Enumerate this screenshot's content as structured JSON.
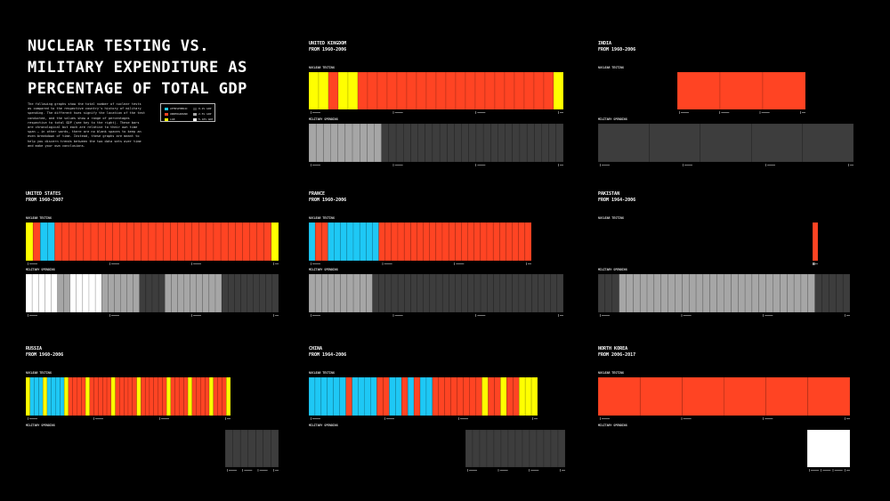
{
  "title_lines": [
    "NUCLEAR TESTING VS.",
    "MILITARY EXPENDITURE AS",
    "PERCENTAGE OF TOTAL GDP"
  ],
  "intro": "The following graphs show the total number of nuclear tests as compared to the respective country's history of military spending. The different hues signify the location of the test conducted, and the values show a range of percentages respective to total GDP (see key to the right). These bars are chronological but each are relative to their own time span — in other words, there are no blank spaces to keep an even breakdown of time. Instead, these graphs are meant to help you discern trends between the two data sets over time and make your own conclusions.",
  "legend": [
    {
      "label": "ATMOSPHERIC",
      "color": "#1ec8f5"
    },
    {
      "label": "UNDERGROUND",
      "color": "#ff4423"
    },
    {
      "label": "LAB",
      "color": "#ffff00"
    },
    {
      "label": "0-2% GDP",
      "color": "#3d3d3d"
    },
    {
      "label": "2-5% GDP",
      "color": "#a6a6a6"
    },
    {
      "label": "5-10% GDP",
      "color": "#ffffff"
    }
  ],
  "labels": {
    "nuclear": "NUCLEAR TESTING",
    "military": "MILITARY SPENDING"
  },
  "colors": {
    "ATM": "#1ec8f5",
    "UND": "#ff4423",
    "LAB": "#ffff00",
    "LOW": "#3d3d3d",
    "MID": "#a6a6a6",
    "HIGH": "#ffffff"
  },
  "chart_data": [
    {
      "type": "bar",
      "country": "UNITED KINGDOM",
      "period": "FROM 1960-2006",
      "nuclear": [
        {
          "type": "LAB",
          "count": 2
        },
        {
          "type": "UND",
          "count": 1
        },
        {
          "type": "LAB",
          "count": 2
        },
        {
          "type": "UND",
          "count": 20
        },
        {
          "type": "LAB",
          "count": 1
        }
      ],
      "military": [
        {
          "level": "MID",
          "count": 10
        },
        {
          "level": "LOW",
          "count": 25
        }
      ]
    },
    {
      "type": "bar",
      "country": "INDIA",
      "period": "FROM 1960-2006",
      "nuclear": [
        {
          "type": "UND",
          "count": 3
        }
      ],
      "military": [
        {
          "level": "LOW",
          "count": 5
        }
      ]
    },
    {
      "type": "bar",
      "country": "UNITED STATES",
      "period": "FROM 1960-2007",
      "nuclear": [
        {
          "type": "LAB",
          "count": 1
        },
        {
          "type": "UND",
          "count": 1
        },
        {
          "type": "ATM",
          "count": 2
        },
        {
          "type": "UND",
          "count": 30
        },
        {
          "type": "LAB",
          "count": 1
        }
      ],
      "military": [
        {
          "level": "HIGH",
          "count": 5
        },
        {
          "level": "MID",
          "count": 2
        },
        {
          "level": "HIGH",
          "count": 5
        },
        {
          "level": "MID",
          "count": 6
        },
        {
          "level": "LOW",
          "count": 4
        },
        {
          "level": "MID",
          "count": 9
        },
        {
          "level": "LOW",
          "count": 9
        }
      ]
    },
    {
      "type": "bar",
      "country": "FRANCE",
      "period": "FROM 1960-2006",
      "nuclear": [
        {
          "type": "ATM",
          "count": 1
        },
        {
          "type": "UND",
          "count": 2
        },
        {
          "type": "ATM",
          "count": 8
        },
        {
          "type": "UND",
          "count": 24
        }
      ],
      "military": [
        {
          "level": "MID",
          "count": 10
        },
        {
          "level": "LOW",
          "count": 30
        }
      ]
    },
    {
      "type": "bar",
      "country": "PAKISTAN",
      "period": "FROM 1964-2006",
      "nuclear": [
        {
          "type": "UND",
          "count": 1
        }
      ],
      "military": [
        {
          "level": "LOW",
          "count": 3
        },
        {
          "level": "MID",
          "count": 28
        },
        {
          "level": "LOW",
          "count": 5
        }
      ]
    },
    {
      "type": "bar",
      "country": "RUSSIA",
      "period": "FROM 1960-2006",
      "nuclear": [
        {
          "type": "LAB",
          "count": 1
        },
        {
          "type": "ATM",
          "count": 3
        },
        {
          "type": "LAB",
          "count": 1
        },
        {
          "type": "ATM",
          "count": 4
        },
        {
          "type": "LAB",
          "count": 1
        },
        {
          "type": "UND",
          "count": 4
        },
        {
          "type": "LAB",
          "count": 1
        },
        {
          "type": "UND",
          "count": 5
        },
        {
          "type": "LAB",
          "count": 1
        },
        {
          "type": "UND",
          "count": 5
        },
        {
          "type": "LAB",
          "count": 1
        },
        {
          "type": "UND",
          "count": 6
        },
        {
          "type": "LAB",
          "count": 1
        },
        {
          "type": "UND",
          "count": 4
        },
        {
          "type": "LAB",
          "count": 1
        },
        {
          "type": "UND",
          "count": 4
        },
        {
          "type": "LAB",
          "count": 1
        },
        {
          "type": "UND",
          "count": 3
        },
        {
          "type": "LAB",
          "count": 1
        }
      ],
      "military": [
        {
          "level": "LOW",
          "count": 7
        }
      ]
    },
    {
      "type": "bar",
      "country": "CHINA",
      "period": "FROM 1964-2006",
      "nuclear": [
        {
          "type": "ATM",
          "count": 6
        },
        {
          "type": "UND",
          "count": 1
        },
        {
          "type": "ATM",
          "count": 4
        },
        {
          "type": "UND",
          "count": 2
        },
        {
          "type": "ATM",
          "count": 2
        },
        {
          "type": "UND",
          "count": 1
        },
        {
          "type": "ATM",
          "count": 1
        },
        {
          "type": "UND",
          "count": 1
        },
        {
          "type": "ATM",
          "count": 2
        },
        {
          "type": "UND",
          "count": 8
        },
        {
          "type": "LAB",
          "count": 1
        },
        {
          "type": "UND",
          "count": 2
        },
        {
          "type": "LAB",
          "count": 1
        },
        {
          "type": "UND",
          "count": 2
        },
        {
          "type": "LAB",
          "count": 3
        }
      ],
      "military": [
        {
          "level": "LOW",
          "count": 14
        }
      ]
    },
    {
      "type": "bar",
      "country": "NORTH KOREA",
      "period": "FROM 2006-2017",
      "nuclear": [
        {
          "type": "UND",
          "count": 6
        }
      ],
      "military": [
        {
          "level": "HIGH",
          "count": 1
        }
      ]
    }
  ]
}
